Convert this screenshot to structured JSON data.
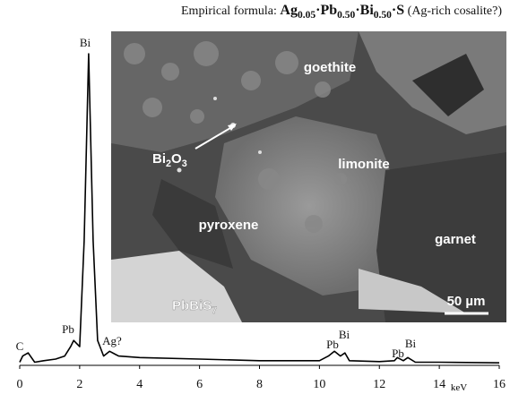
{
  "chart_data": {
    "type": "line",
    "caption_prefix": "Empirical formula: ",
    "formula": [
      {
        "t": "Ag"
      },
      {
        "sub": "0.05"
      },
      {
        "t": "·Pb"
      },
      {
        "sub": "0.50"
      },
      {
        "t": "·Bi"
      },
      {
        "sub": "0.50"
      },
      {
        "t": "·S"
      }
    ],
    "caption_suffix": " (Ag-rich cosalite?)",
    "x_label": "keV",
    "xlim": [
      0,
      16
    ],
    "xticks": [
      0,
      2,
      4,
      6,
      8,
      10,
      12,
      14,
      16
    ],
    "ylim": [
      0,
      100
    ],
    "color": "#000000",
    "x": [
      0,
      0.1,
      0.28,
      0.5,
      0.8,
      1.2,
      1.5,
      1.7,
      1.8,
      2.0,
      2.15,
      2.3,
      2.45,
      2.6,
      2.8,
      3.0,
      3.3,
      4,
      6,
      8,
      10,
      10.3,
      10.5,
      10.7,
      10.85,
      11,
      12,
      12.5,
      12.6,
      12.8,
      12.95,
      13.2,
      14,
      16
    ],
    "values": [
      1,
      3,
      4,
      1,
      1.5,
      2,
      3,
      6,
      8,
      6,
      40,
      100,
      40,
      8,
      3,
      4.5,
      3,
      2.5,
      2,
      1.5,
      1.5,
      3,
      4.5,
      3,
      4,
      1.5,
      1.2,
      1.5,
      2.5,
      1.5,
      2.5,
      1,
      1,
      0.8
    ],
    "annotations": [
      "C",
      "Pb",
      "Bi",
      "Ag?",
      "Pb",
      "Bi",
      "Pb",
      "Bi"
    ],
    "image_labels": [
      "goethite",
      "limonite",
      "pyroxene",
      "garnet"
    ],
    "bi2o3": [
      {
        "t": "Bi"
      },
      {
        "sub": "2"
      },
      {
        "t": "O"
      },
      {
        "sub": "3"
      }
    ],
    "pbbis": [
      {
        "t": "PbBiS"
      },
      {
        "sub": "7"
      }
    ],
    "scale_bar": "50 µm"
  }
}
